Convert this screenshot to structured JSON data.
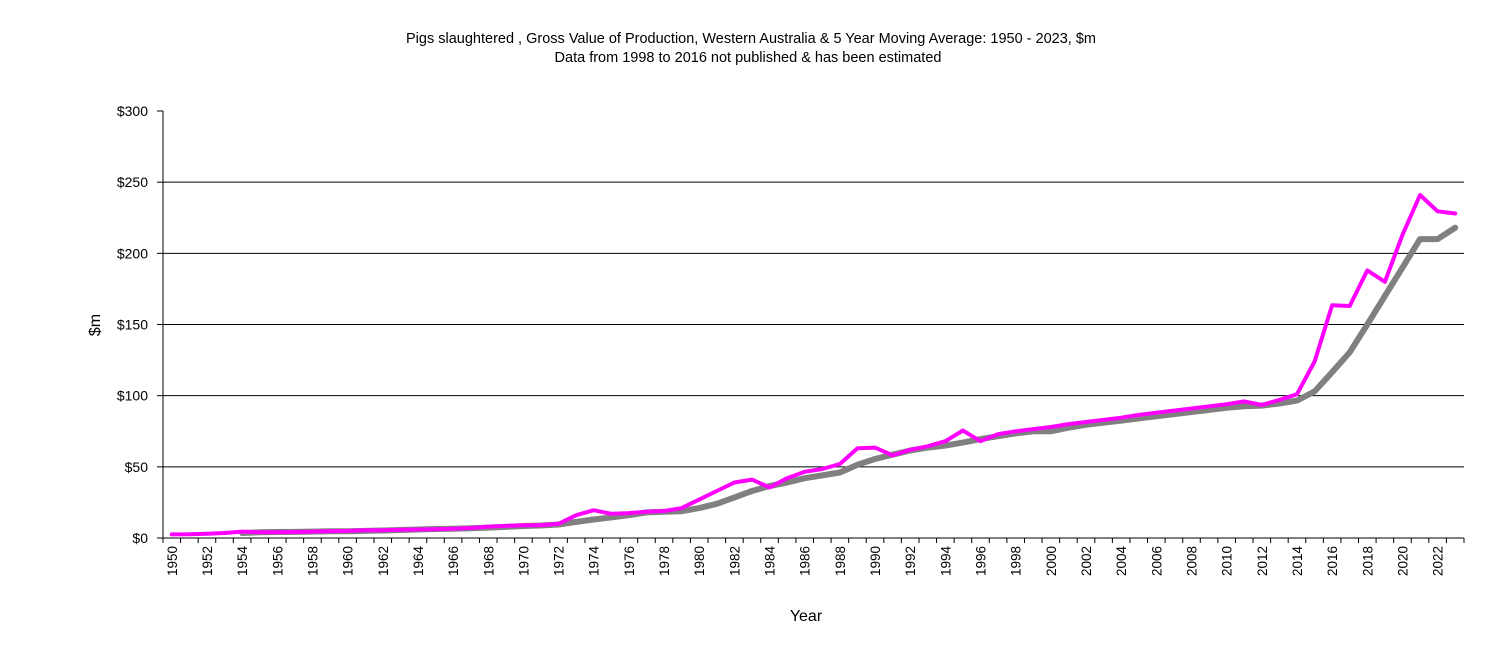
{
  "chart_data": {
    "type": "line",
    "title": "Pigs slaughtered , Gross Value of Production, Western Australia & 5 Year Moving Average: 1950 - 2023, $m",
    "subtitle": "Data from 1998 to 2016 not published & has been estimated",
    "xlabel": "Year",
    "ylabel": "$m",
    "ylim": [
      0,
      300
    ],
    "y_ticks": [
      0,
      50,
      100,
      150,
      200,
      250,
      300
    ],
    "y_tick_labels": [
      "$0",
      "$50",
      "$100",
      "$150",
      "$200",
      "$250",
      "$300"
    ],
    "grid": true,
    "legend": "none",
    "x_start": 1950,
    "x_end": 2023,
    "x_tick_label_step": 2,
    "series": [
      {
        "name": "Gross Value of Production",
        "color": "#ff00ff",
        "start_year": 1950,
        "values": [
          2.5,
          2.6,
          3.0,
          3.5,
          4.5,
          4.0,
          4.0,
          4.2,
          4.5,
          4.8,
          5.0,
          5.5,
          5.5,
          5.8,
          6.0,
          6.2,
          6.5,
          7.0,
          8.0,
          8.5,
          9.0,
          9.0,
          10.0,
          16.0,
          19.5,
          17.0,
          17.5,
          18.5,
          19.0,
          21.0,
          27.0,
          33.0,
          39.0,
          41.0,
          35.5,
          42.0,
          46.5,
          48.5,
          52.0,
          63.0,
          63.5,
          58.0,
          62.0,
          64.5,
          68.0,
          75.5,
          68.0,
          73.0,
          75.0,
          76.5,
          78.0,
          80.0,
          81.5,
          83.0,
          84.5,
          86.5,
          88.0,
          89.5,
          91.0,
          92.5,
          94.0,
          96.0,
          93.5,
          97.0,
          101.0,
          124.0,
          163.5,
          163.0,
          188.0,
          180.0,
          213.0,
          241.0,
          229.5,
          228.0
        ]
      },
      {
        "name": "5 Year Moving Average",
        "color": "#808080",
        "start_year": 1954,
        "values": [
          3.5,
          4.0,
          4.2,
          4.3,
          4.5,
          4.7,
          4.8,
          5.0,
          5.3,
          5.6,
          6.0,
          6.3,
          6.5,
          6.8,
          7.3,
          7.8,
          8.4,
          8.8,
          9.5,
          11.3,
          13.0,
          14.5,
          16.0,
          18.0,
          18.5,
          18.8,
          21.0,
          24.0,
          28.5,
          33.0,
          36.5,
          39.0,
          42.0,
          44.0,
          46.0,
          51.5,
          55.5,
          58.5,
          61.5,
          63.5,
          65.0,
          67.0,
          69.5,
          71.5,
          73.5,
          75.0,
          75.0,
          77.5,
          79.5,
          81.0,
          82.5,
          84.0,
          85.5,
          87.0,
          88.5,
          90.0,
          91.5,
          92.5,
          93.0,
          94.5,
          96.5,
          103.0,
          116.5,
          130.5,
          150.0,
          170.0,
          190.0,
          210.0,
          210.0,
          218.0
        ]
      }
    ]
  }
}
